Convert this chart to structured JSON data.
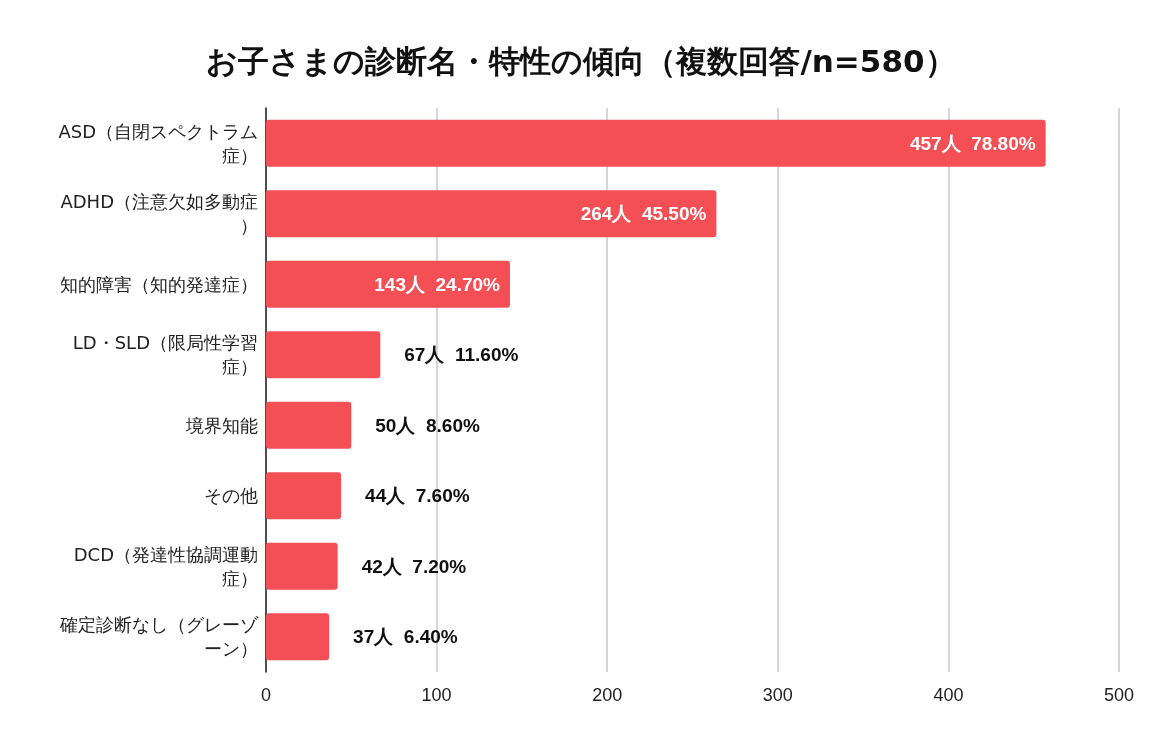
{
  "chart_data": {
    "type": "bar",
    "orientation": "horizontal",
    "title": "お子さまの診断名・特性の傾向（複数回答/n=580）",
    "categories": [
      "ASD（自閉スペクトラム症）",
      "ADHD（注意欠如多動症）",
      "知的障害（知的発達症）",
      "LD・SLD（限局性学習症）",
      "境界知能",
      "その他",
      "DCD（発達性協調運動症）",
      "確定診断なし（グレーゾーン）"
    ],
    "values": [
      457,
      264,
      143,
      67,
      50,
      44,
      42,
      37
    ],
    "value_labels": [
      "457人  78.80%",
      "264人  45.50%",
      "143人  24.70%",
      "67人  11.60%",
      "50人  8.60%",
      "44人  7.60%",
      "42人  7.20%",
      "37人  6.40%"
    ],
    "color": "#f44f55",
    "xlim": [
      0,
      500
    ],
    "xticks": [
      0,
      100,
      200,
      300,
      400,
      500
    ],
    "grid": "x"
  }
}
